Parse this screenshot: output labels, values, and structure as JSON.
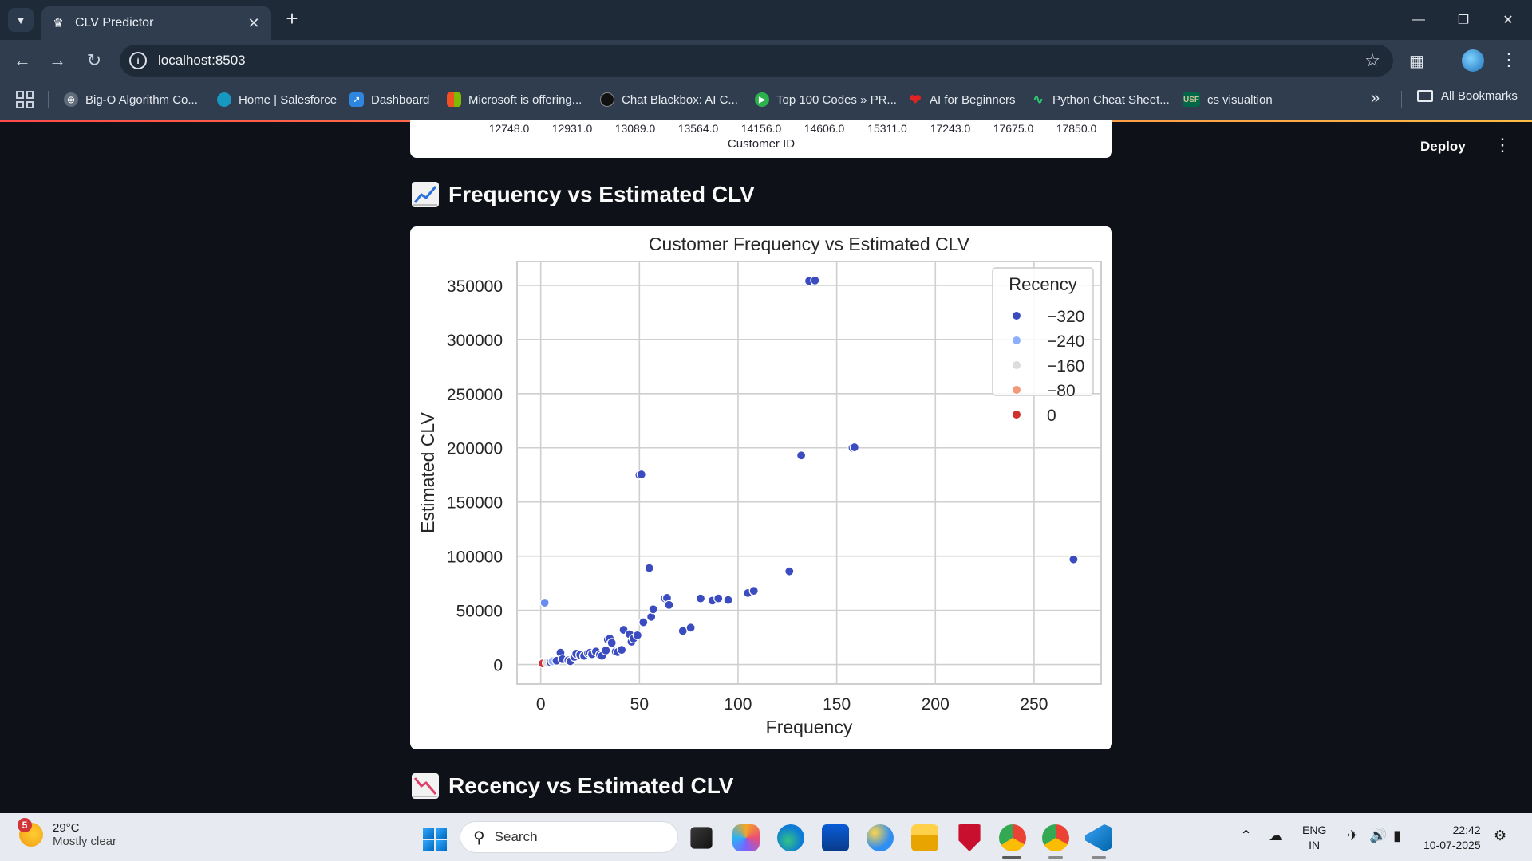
{
  "browser": {
    "tab_title": "CLV Predictor",
    "url": "localhost:8503",
    "bookmarks": [
      {
        "label": "Big-O Algorithm Co...",
        "icon": "globe-icon",
        "color": "#5f6b78"
      },
      {
        "label": "Home | Salesforce",
        "icon": "salesforce-cloud-icon",
        "color": "#1798c1"
      },
      {
        "label": "Dashboard",
        "icon": "dashboard-icon",
        "color": "#2e86de"
      },
      {
        "label": "Microsoft is offering...",
        "icon": "microsoft-icon",
        "color": "#f25022"
      },
      {
        "label": "Chat Blackbox: AI C...",
        "icon": "blackbox-icon",
        "color": "#111111"
      },
      {
        "label": "Top 100 Codes » PR...",
        "icon": "play-icon",
        "color": "#2bb24c"
      },
      {
        "label": "AI for Beginners",
        "icon": "heart-icon",
        "color": "#e02424"
      },
      {
        "label": "Python Cheat Sheet...",
        "icon": "python-icon",
        "color": "#2ecc71"
      },
      {
        "label": "cs visualtion",
        "icon": "usf-icon",
        "color": "#006747",
        "badge": "USF"
      }
    ],
    "all_bookmarks": "All Bookmarks"
  },
  "app": {
    "deploy_label": "Deploy",
    "top_chart": {
      "x_ticks": [
        "12748.0",
        "12931.0",
        "13089.0",
        "13564.0",
        "14156.0",
        "14606.0",
        "15311.0",
        "17243.0",
        "17675.0",
        "17850.0"
      ],
      "xlabel": "Customer ID"
    },
    "section1_title": "Frequency vs Estimated CLV",
    "section2_title": "Recency vs Estimated CLV"
  },
  "chart_data": {
    "type": "scatter",
    "title": "Customer Frequency vs Estimated CLV",
    "xlabel": "Frequency",
    "ylabel": "Estimated CLV",
    "xlim": [
      -12,
      284
    ],
    "ylim": [
      -18000,
      372000
    ],
    "x_ticks": [
      0,
      50,
      100,
      150,
      200,
      250
    ],
    "y_ticks": [
      0,
      50000,
      100000,
      150000,
      200000,
      250000,
      300000,
      350000
    ],
    "grid": true,
    "legend": {
      "title": "Recency",
      "placement": "top-right",
      "entries": [
        {
          "label": "−320",
          "color": "#3b4cc0"
        },
        {
          "label": "−240",
          "color": "#8db0fe"
        },
        {
          "label": "−160",
          "color": "#dddcdc"
        },
        {
          "label": "−80",
          "color": "#f4987a"
        },
        {
          "label": "0",
          "color": "#d0312d"
        }
      ]
    },
    "points": [
      {
        "x": 1,
        "y": 2000,
        "c": "#f4987a"
      },
      {
        "x": 1,
        "y": 1000,
        "c": "#d0312d"
      },
      {
        "x": 2,
        "y": 57000,
        "c": "#6a8cf0"
      },
      {
        "x": 3,
        "y": 1500,
        "c": "#dddcdc"
      },
      {
        "x": 5,
        "y": 2000,
        "c": "#3b4cc0"
      },
      {
        "x": 6,
        "y": 3000,
        "c": "#8db0fe"
      },
      {
        "x": 8,
        "y": 3500,
        "c": "#3b4cc0"
      },
      {
        "x": 10,
        "y": 11000,
        "c": "#3b4cc0"
      },
      {
        "x": 11,
        "y": 5000,
        "c": "#3b4cc0"
      },
      {
        "x": 14,
        "y": 4000,
        "c": "#3b4cc0"
      },
      {
        "x": 15,
        "y": 3000,
        "c": "#3b4cc0"
      },
      {
        "x": 17,
        "y": 7000,
        "c": "#3b4cc0"
      },
      {
        "x": 18,
        "y": 10000,
        "c": "#3b4cc0"
      },
      {
        "x": 20,
        "y": 9000,
        "c": "#3b4cc0"
      },
      {
        "x": 22,
        "y": 8000,
        "c": "#3b4cc0"
      },
      {
        "x": 24,
        "y": 10500,
        "c": "#3b4cc0"
      },
      {
        "x": 25,
        "y": 11000,
        "c": "#3b4cc0"
      },
      {
        "x": 26,
        "y": 9500,
        "c": "#3b4cc0"
      },
      {
        "x": 28,
        "y": 12000,
        "c": "#3b4cc0"
      },
      {
        "x": 30,
        "y": 9000,
        "c": "#3b4cc0"
      },
      {
        "x": 31,
        "y": 8000,
        "c": "#3b4cc0"
      },
      {
        "x": 33,
        "y": 13000,
        "c": "#3b4cc0"
      },
      {
        "x": 34,
        "y": 23000,
        "c": "#3b4cc0"
      },
      {
        "x": 35,
        "y": 24000,
        "c": "#3b4cc0"
      },
      {
        "x": 36,
        "y": 20000,
        "c": "#3b4cc0"
      },
      {
        "x": 38,
        "y": 12000,
        "c": "#3b4cc0"
      },
      {
        "x": 39,
        "y": 11500,
        "c": "#3b4cc0"
      },
      {
        "x": 41,
        "y": 13500,
        "c": "#3b4cc0"
      },
      {
        "x": 42,
        "y": 32000,
        "c": "#3b4cc0"
      },
      {
        "x": 45,
        "y": 28000,
        "c": "#3b4cc0"
      },
      {
        "x": 46,
        "y": 21000,
        "c": "#3b4cc0"
      },
      {
        "x": 47,
        "y": 24000,
        "c": "#3b4cc0"
      },
      {
        "x": 49,
        "y": 27000,
        "c": "#3b4cc0"
      },
      {
        "x": 50,
        "y": 175000,
        "c": "#3b4cc0"
      },
      {
        "x": 51,
        "y": 175500,
        "c": "#3b4cc0"
      },
      {
        "x": 52,
        "y": 39000,
        "c": "#3b4cc0"
      },
      {
        "x": 55,
        "y": 89000,
        "c": "#3b4cc0"
      },
      {
        "x": 56,
        "y": 44000,
        "c": "#3b4cc0"
      },
      {
        "x": 57,
        "y": 51000,
        "c": "#3b4cc0"
      },
      {
        "x": 63,
        "y": 61000,
        "c": "#3b4cc0"
      },
      {
        "x": 64,
        "y": 61500,
        "c": "#3b4cc0"
      },
      {
        "x": 65,
        "y": 55000,
        "c": "#3b4cc0"
      },
      {
        "x": 72,
        "y": 31000,
        "c": "#3b4cc0"
      },
      {
        "x": 76,
        "y": 34000,
        "c": "#3b4cc0"
      },
      {
        "x": 81,
        "y": 61000,
        "c": "#3b4cc0"
      },
      {
        "x": 87,
        "y": 59000,
        "c": "#3b4cc0"
      },
      {
        "x": 90,
        "y": 61000,
        "c": "#3b4cc0"
      },
      {
        "x": 95,
        "y": 59500,
        "c": "#3b4cc0"
      },
      {
        "x": 105,
        "y": 66000,
        "c": "#3b4cc0"
      },
      {
        "x": 108,
        "y": 68000,
        "c": "#3b4cc0"
      },
      {
        "x": 126,
        "y": 86000,
        "c": "#3b4cc0"
      },
      {
        "x": 132,
        "y": 193000,
        "c": "#3b4cc0"
      },
      {
        "x": 136,
        "y": 354000,
        "c": "#3b4cc0"
      },
      {
        "x": 139,
        "y": 354500,
        "c": "#3b4cc0"
      },
      {
        "x": 158,
        "y": 200000,
        "c": "#3b4cc0"
      },
      {
        "x": 159,
        "y": 200500,
        "c": "#3b4cc0"
      },
      {
        "x": 270,
        "y": 97000,
        "c": "#3b4cc0"
      }
    ]
  },
  "taskbar": {
    "weather_temp": "29°C",
    "weather_desc": "Mostly clear",
    "weather_badge": "5",
    "search_placeholder": "Search",
    "lang_line1": "ENG",
    "lang_line2": "IN",
    "time": "22:42",
    "date": "10-07-2025"
  }
}
